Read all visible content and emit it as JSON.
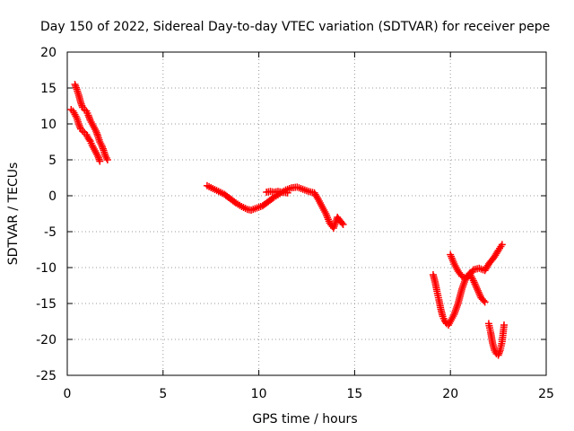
{
  "chart_data": {
    "type": "scatter",
    "title": "Day 150 of 2022, Sidereal Day-to-day VTEC variation (SDTVAR) for receiver pepe",
    "xlabel": "GPS time / hours",
    "ylabel": "SDTVAR / TECUs",
    "xlim": [
      0,
      25
    ],
    "ylim": [
      -25,
      20
    ],
    "xticks": [
      0,
      5,
      10,
      15,
      20,
      25
    ],
    "yticks": [
      -25,
      -20,
      -15,
      -10,
      -5,
      0,
      5,
      10,
      15,
      20
    ],
    "grid": true,
    "marker": "+",
    "series_color": "#ff0000",
    "series": [
      {
        "x": [
          0.4,
          0.5,
          0.6,
          0.7,
          0.8,
          0.9,
          1.0,
          1.1,
          1.2,
          1.3,
          1.4,
          1.5,
          1.6,
          1.7,
          1.8,
          1.9,
          2.0,
          2.1
        ],
        "y": [
          15.5,
          14.8,
          14.0,
          13.0,
          12.3,
          12.0,
          11.8,
          11.2,
          10.5,
          10.0,
          9.5,
          9.0,
          8.3,
          7.5,
          7.0,
          6.3,
          5.5,
          5.0
        ]
      },
      {
        "x": [
          0.2,
          0.3,
          0.4,
          0.5,
          0.6,
          0.7,
          0.8,
          0.9,
          1.0,
          1.1,
          1.2,
          1.3,
          1.4,
          1.5,
          1.6,
          1.7
        ],
        "y": [
          12.0,
          11.8,
          11.3,
          10.8,
          10.0,
          9.3,
          9.0,
          8.8,
          8.5,
          8.0,
          7.6,
          7.0,
          6.5,
          6.0,
          5.5,
          4.8
        ]
      },
      {
        "x": [
          7.3,
          7.6,
          7.9,
          8.2,
          8.5,
          8.8,
          9.1,
          9.4,
          9.6,
          9.9,
          10.2,
          10.5,
          10.8,
          11.1,
          11.4,
          11.7,
          12.0,
          12.3,
          12.6,
          12.9,
          13.1,
          13.3,
          13.5,
          13.7,
          13.9,
          14.1,
          14.4
        ],
        "y": [
          1.4,
          1.0,
          0.6,
          0.2,
          -0.4,
          -1.0,
          -1.5,
          -1.9,
          -2.0,
          -1.7,
          -1.4,
          -0.8,
          -0.2,
          0.3,
          0.8,
          1.1,
          1.2,
          0.9,
          0.6,
          0.4,
          -0.5,
          -1.5,
          -2.5,
          -3.8,
          -4.5,
          -3.0,
          -4.0
        ]
      },
      {
        "x": [
          10.4,
          10.6,
          10.8,
          11.0,
          11.2,
          11.5
        ],
        "y": [
          0.5,
          0.6,
          0.5,
          0.6,
          0.5,
          0.4
        ]
      },
      {
        "x": [
          19.1,
          19.2,
          19.3,
          19.4,
          19.5,
          19.6,
          19.7,
          19.8,
          19.9,
          20.0,
          20.2,
          20.4,
          20.6,
          20.8,
          21.0,
          21.2,
          21.4,
          21.6,
          21.8
        ],
        "y": [
          -11.0,
          -12.0,
          -13.3,
          -14.5,
          -15.8,
          -16.8,
          -17.4,
          -17.8,
          -18.0,
          -17.5,
          -16.5,
          -15.0,
          -13.0,
          -11.5,
          -10.8,
          -11.8,
          -13.0,
          -14.2,
          -14.8
        ]
      },
      {
        "x": [
          20.0,
          20.2,
          20.4,
          20.6,
          20.8,
          21.0,
          21.2,
          21.5,
          21.8,
          22.0,
          22.3,
          22.5,
          22.7
        ],
        "y": [
          -8.2,
          -9.5,
          -10.5,
          -11.2,
          -11.5,
          -11.0,
          -10.3,
          -10.1,
          -10.4,
          -9.5,
          -8.5,
          -7.6,
          -6.8
        ]
      },
      {
        "x": [
          22.0,
          22.1,
          22.2,
          22.3,
          22.4,
          22.5,
          22.6,
          22.7,
          22.8
        ],
        "y": [
          -17.8,
          -19.0,
          -20.5,
          -21.5,
          -22.0,
          -22.2,
          -21.5,
          -20.3,
          -18.0
        ]
      }
    ]
  }
}
